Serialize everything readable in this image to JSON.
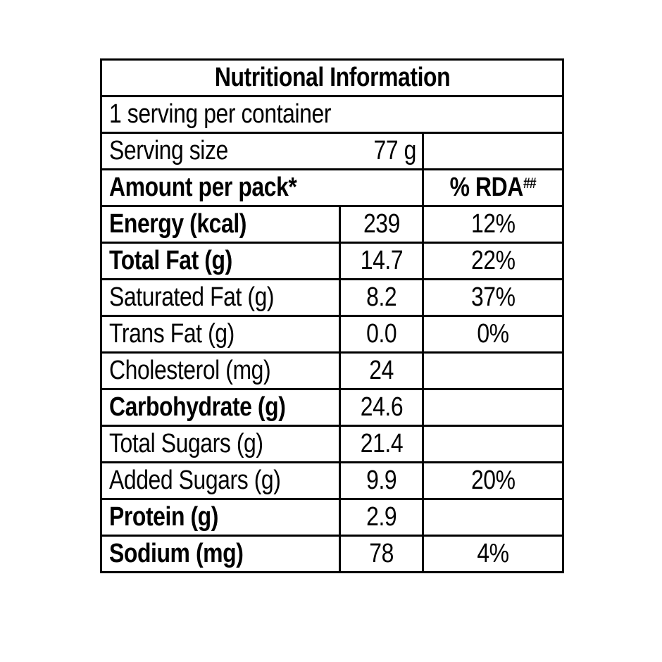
{
  "table": {
    "title": "Nutritional Information",
    "serving_statement": "1 serving per container",
    "serving_size": {
      "label": "Serving size",
      "value": "77 g"
    },
    "header": {
      "amount_label": "Amount per pack*",
      "rda_label": "% RDA",
      "rda_superscript": "##"
    },
    "rows": [
      {
        "label": "Energy (kcal)",
        "value": "239",
        "rda": "12%"
      },
      {
        "label": "Total Fat (g)",
        "value": "14.7",
        "rda": "22%"
      },
      {
        "label": "Saturated Fat (g)",
        "value": "8.2",
        "rda": "37%"
      },
      {
        "label": "Trans Fat (g)",
        "value": "0.0",
        "rda": "0%"
      },
      {
        "label": "Cholesterol (mg)",
        "value": "24",
        "rda": ""
      },
      {
        "label": "Carbohydrate (g)",
        "value": "24.6",
        "rda": ""
      },
      {
        "label": "Total Sugars (g)",
        "value": "21.4",
        "rda": ""
      },
      {
        "label": "Added Sugars (g)",
        "value": "9.9",
        "rda": "20%"
      },
      {
        "label": "Protein (g)",
        "value": "2.9",
        "rda": ""
      },
      {
        "label": "Sodium (mg)",
        "value": "78",
        "rda": "4%"
      }
    ]
  },
  "colors": {
    "border": "#000000",
    "text": "#000000",
    "background": "#ffffff"
  }
}
